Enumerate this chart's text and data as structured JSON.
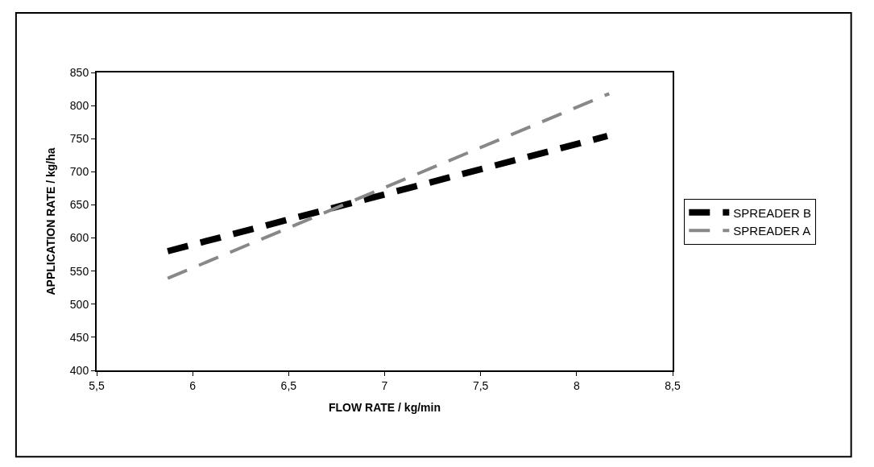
{
  "chart_data": {
    "type": "line",
    "xlabel": "FLOW RATE / kg/min",
    "ylabel": "APPLICATION RATE / kg/ha",
    "series": [
      {
        "name": "SPREADER B",
        "color": "#000000",
        "x": [
          5.87,
          8.16
        ],
        "values": [
          580,
          754
        ]
      },
      {
        "name": "SPREADER A",
        "color": "#888888",
        "x": [
          5.87,
          8.17
        ],
        "values": [
          539,
          818
        ]
      }
    ],
    "line_style": "dashed",
    "marker": "none",
    "legend": "right",
    "xlim": [
      5.5,
      8.5
    ],
    "xticks": [
      {
        "value": 5.5,
        "label": "5,5"
      },
      6,
      {
        "value": 6.5,
        "label": "6,5"
      },
      7,
      {
        "value": 7.5,
        "label": "7,5"
      },
      8,
      {
        "value": 8.5,
        "label": "8,5"
      }
    ],
    "ylim": [
      400,
      850
    ],
    "yticks": [
      400,
      450,
      500,
      550,
      600,
      650,
      700,
      750,
      800,
      850
    ]
  }
}
